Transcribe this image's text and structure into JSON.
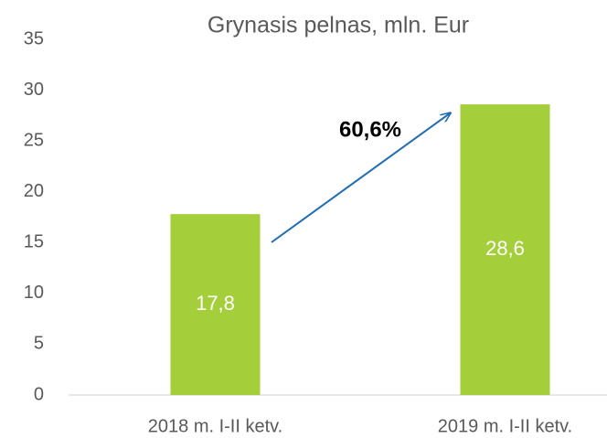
{
  "chart_data": {
    "type": "bar",
    "title": "Grynasis pelnas, mln. Eur",
    "categories": [
      "2018 m. I-II ketv.",
      "2019 m. I-II ketv."
    ],
    "values": [
      17.8,
      28.6
    ],
    "value_labels": [
      "17,8",
      "28,6"
    ],
    "color": "#a5cf3a",
    "annotation": "60,6%",
    "ylim": [
      0,
      35
    ],
    "yticks": [
      0,
      5,
      10,
      15,
      20,
      25,
      30,
      35
    ],
    "grid": false
  }
}
